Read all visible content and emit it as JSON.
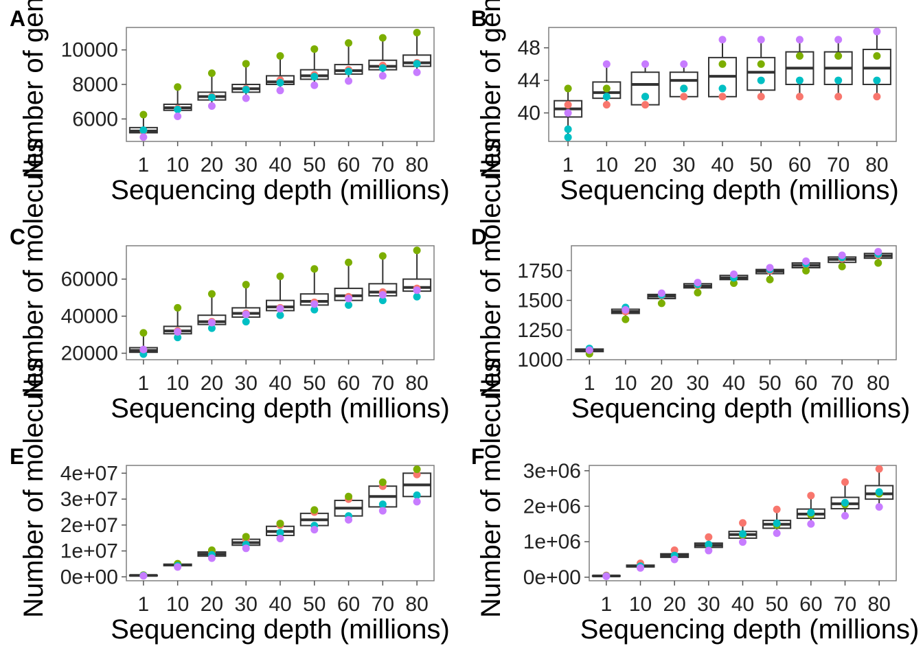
{
  "chart_data": [
    {
      "label": "A",
      "type": "box",
      "xlabel": "Sequencing depth (millions)",
      "ylabel": "Number of genes detected",
      "categories": [
        "1",
        "10",
        "20",
        "30",
        "40",
        "50",
        "60",
        "70",
        "80"
      ],
      "ylim": [
        4700,
        11300
      ],
      "yticks": [
        6000,
        8000,
        10000
      ],
      "ytick_labels": [
        "6000",
        "8000",
        "10000"
      ],
      "boxes": [
        {
          "min": 4950,
          "q1": 5200,
          "median": 5300,
          "q3": 5500,
          "max": 6250
        },
        {
          "min": 6150,
          "q1": 6500,
          "median": 6650,
          "q3": 6850,
          "max": 7850
        },
        {
          "min": 6750,
          "q1": 7100,
          "median": 7300,
          "q3": 7550,
          "max": 8650
        },
        {
          "min": 7200,
          "q1": 7550,
          "median": 7750,
          "q3": 8000,
          "max": 9200
        },
        {
          "min": 7650,
          "q1": 8000,
          "median": 8150,
          "q3": 8500,
          "max": 9650
        },
        {
          "min": 7950,
          "q1": 8300,
          "median": 8500,
          "q3": 8850,
          "max": 10050
        },
        {
          "min": 8200,
          "q1": 8600,
          "median": 8800,
          "q3": 9150,
          "max": 10400
        },
        {
          "min": 8500,
          "q1": 8850,
          "median": 9050,
          "q3": 9400,
          "max": 10700
        },
        {
          "min": 8700,
          "q1": 9050,
          "median": 9250,
          "q3": 9700,
          "max": 11000
        }
      ],
      "series": [
        {
          "color": "#F8766D",
          "values": [
            5300,
            6600,
            7300,
            7750,
            8250,
            8550,
            8850,
            9100,
            9250
          ]
        },
        {
          "color": "#7CAE00",
          "values": [
            6250,
            7850,
            8650,
            9200,
            9650,
            10050,
            10400,
            10700,
            11000
          ]
        },
        {
          "color": "#00BFC4",
          "values": [
            5350,
            6550,
            7250,
            7700,
            8100,
            8450,
            8750,
            8950,
            9200
          ]
        },
        {
          "color": "#C77CFF",
          "values": [
            4950,
            6150,
            6750,
            7200,
            7650,
            7950,
            8200,
            8500,
            8700
          ]
        }
      ]
    },
    {
      "label": "B",
      "type": "box",
      "xlabel": "Sequencing depth (millions)",
      "ylabel": "Number of genes detected",
      "categories": [
        "1",
        "10",
        "20",
        "30",
        "40",
        "50",
        "60",
        "70",
        "80"
      ],
      "ylim": [
        36.5,
        50.5
      ],
      "yticks": [
        40,
        44,
        48
      ],
      "ytick_labels": [
        "40",
        "44",
        "48"
      ],
      "boxes": [
        {
          "min": 37,
          "q1": 39.5,
          "median": 40.5,
          "q3": 41.5,
          "max": 43
        },
        {
          "min": 41,
          "q1": 41.8,
          "median": 42.5,
          "q3": 43.8,
          "max": 46
        },
        {
          "min": 41,
          "q1": 41,
          "median": 43.5,
          "q3": 45,
          "max": 46
        },
        {
          "min": 42,
          "q1": 42,
          "median": 44,
          "q3": 45,
          "max": 46
        },
        {
          "min": 42,
          "q1": 42,
          "median": 44.5,
          "q3": 46.8,
          "max": 49
        },
        {
          "min": 42,
          "q1": 42.8,
          "median": 45,
          "q3": 46.8,
          "max": 49
        },
        {
          "min": 42,
          "q1": 43.5,
          "median": 45.5,
          "q3": 47.5,
          "max": 49
        },
        {
          "min": 42,
          "q1": 43.5,
          "median": 45.5,
          "q3": 47.5,
          "max": 49
        },
        {
          "min": 42,
          "q1": 43.5,
          "median": 45.5,
          "q3": 47.8,
          "max": 50
        }
      ],
      "series": [
        {
          "color": "#F8766D",
          "values": [
            41,
            41,
            41,
            42,
            42,
            42,
            42,
            42,
            42
          ]
        },
        {
          "color": "#7CAE00",
          "values": [
            43,
            43,
            42,
            43,
            46,
            46,
            47,
            47,
            47
          ]
        },
        {
          "color": "#00BFC4",
          "values": [
            38,
            42,
            42,
            43,
            43,
            44,
            44,
            44,
            44
          ]
        },
        {
          "color": "#C77CFF",
          "values": [
            40,
            46,
            46,
            46,
            49,
            49,
            49,
            49,
            50
          ]
        }
      ],
      "extra_points": [
        {
          "x": "1",
          "y": 37,
          "color": "#00BFC4"
        }
      ]
    },
    {
      "label": "C",
      "type": "box",
      "xlabel": "Sequencing depth (millions)",
      "ylabel": "Number of molecules",
      "categories": [
        "1",
        "10",
        "20",
        "30",
        "40",
        "50",
        "60",
        "70",
        "80"
      ],
      "ylim": [
        16500,
        78000
      ],
      "yticks": [
        20000,
        40000,
        60000
      ],
      "ytick_labels": [
        "20000",
        "40000",
        "60000"
      ],
      "boxes": [
        {
          "min": 19500,
          "q1": 20500,
          "median": 21500,
          "q3": 23000,
          "max": 31000
        },
        {
          "min": 28500,
          "q1": 30500,
          "median": 32000,
          "q3": 34500,
          "max": 44500
        },
        {
          "min": 33500,
          "q1": 35500,
          "median": 37000,
          "q3": 40500,
          "max": 52000
        },
        {
          "min": 37000,
          "q1": 39500,
          "median": 41500,
          "q3": 44500,
          "max": 57000
        },
        {
          "min": 40500,
          "q1": 43000,
          "median": 45000,
          "q3": 48500,
          "max": 61500
        },
        {
          "min": 43500,
          "q1": 46000,
          "median": 48000,
          "q3": 52000,
          "max": 65500
        },
        {
          "min": 46000,
          "q1": 48500,
          "median": 51000,
          "q3": 55000,
          "max": 69000
        },
        {
          "min": 48500,
          "q1": 51000,
          "median": 53000,
          "q3": 57500,
          "max": 72500
        },
        {
          "min": 50500,
          "q1": 53500,
          "median": 55500,
          "q3": 60000,
          "max": 75500
        }
      ],
      "series": [
        {
          "color": "#F8766D",
          "values": [
            21500,
            32000,
            37000,
            41500,
            44500,
            47500,
            50500,
            53000,
            55000
          ]
        },
        {
          "color": "#7CAE00",
          "values": [
            31000,
            44500,
            52000,
            57000,
            61500,
            65500,
            69000,
            72500,
            75500
          ]
        },
        {
          "color": "#00BFC4",
          "values": [
            19500,
            28500,
            33500,
            37000,
            40500,
            43500,
            46000,
            48500,
            50500
          ]
        },
        {
          "color": "#C77CFF",
          "values": [
            22000,
            31500,
            36500,
            41000,
            44000,
            46500,
            49500,
            51500,
            54000
          ]
        }
      ]
    },
    {
      "label": "D",
      "type": "box",
      "xlabel": "Sequencing depth (millions)",
      "ylabel": "Number of molecules",
      "categories": [
        "1",
        "10",
        "20",
        "30",
        "40",
        "50",
        "60",
        "70",
        "80"
      ],
      "ylim": [
        1000,
        1960
      ],
      "yticks": [
        1000,
        1250,
        1500,
        1750
      ],
      "ytick_labels": [
        "1000",
        "1250",
        "1500",
        "1750"
      ],
      "boxes": [
        {
          "min": 1050,
          "q1": 1068,
          "median": 1078,
          "q3": 1090,
          "max": 1095
        },
        {
          "min": 1340,
          "q1": 1390,
          "median": 1405,
          "q3": 1425,
          "max": 1440
        },
        {
          "min": 1475,
          "q1": 1515,
          "median": 1535,
          "q3": 1550,
          "max": 1560
        },
        {
          "min": 1565,
          "q1": 1605,
          "median": 1620,
          "q3": 1640,
          "max": 1650
        },
        {
          "min": 1645,
          "q1": 1675,
          "median": 1690,
          "q3": 1710,
          "max": 1720
        },
        {
          "min": 1675,
          "q1": 1725,
          "median": 1745,
          "q3": 1760,
          "max": 1775
        },
        {
          "min": 1750,
          "q1": 1775,
          "median": 1795,
          "q3": 1815,
          "max": 1830
        },
        {
          "min": 1785,
          "q1": 1820,
          "median": 1845,
          "q3": 1865,
          "max": 1880
        },
        {
          "min": 1815,
          "q1": 1855,
          "median": 1875,
          "q3": 1895,
          "max": 1910
        }
      ],
      "series": [
        {
          "color": "#F8766D",
          "values": [
            1075,
            1405,
            1540,
            1625,
            1700,
            1750,
            1800,
            1850,
            1880
          ]
        },
        {
          "color": "#7CAE00",
          "values": [
            1050,
            1340,
            1475,
            1565,
            1645,
            1675,
            1750,
            1785,
            1815
          ]
        },
        {
          "color": "#00BFC4",
          "values": [
            1095,
            1440,
            1545,
            1635,
            1690,
            1760,
            1810,
            1860,
            1890
          ]
        },
        {
          "color": "#C77CFF",
          "values": [
            1080,
            1420,
            1560,
            1650,
            1720,
            1775,
            1830,
            1880,
            1910
          ]
        }
      ]
    },
    {
      "label": "E",
      "type": "box",
      "xlabel": "Sequencing depth (millions)",
      "ylabel": "Number of molecules",
      "categories": [
        "1",
        "10",
        "20",
        "30",
        "40",
        "50",
        "60",
        "70",
        "80"
      ],
      "ylim": [
        -1500000,
        43000000
      ],
      "yticks": [
        0,
        10000000,
        20000000,
        30000000,
        40000000
      ],
      "ytick_labels": [
        "0e+00",
        "1e+07",
        "2e+07",
        "3e+07",
        "4e+07"
      ],
      "boxes": [
        {
          "min": 400000,
          "q1": 500000,
          "median": 550000,
          "q3": 650000,
          "max": 700000
        },
        {
          "min": 3800000,
          "q1": 4300000,
          "median": 4600000,
          "q3": 4900000,
          "max": 5100000
        },
        {
          "min": 7200000,
          "q1": 8000000,
          "median": 8800000,
          "q3": 9600000,
          "max": 10300000
        },
        {
          "min": 11000000,
          "q1": 12200000,
          "median": 13200000,
          "q3": 14500000,
          "max": 15500000
        },
        {
          "min": 14800000,
          "q1": 16000000,
          "median": 17500000,
          "q3": 19500000,
          "max": 20600000
        },
        {
          "min": 18200000,
          "q1": 19800000,
          "median": 22000000,
          "q3": 24500000,
          "max": 25800000
        },
        {
          "min": 22000000,
          "q1": 23500000,
          "median": 26500000,
          "q3": 29500000,
          "max": 31000000
        },
        {
          "min": 25500000,
          "q1": 27000000,
          "median": 31000000,
          "q3": 35000000,
          "max": 36500000
        },
        {
          "min": 29000000,
          "q1": 31000000,
          "median": 35500000,
          "q3": 40000000,
          "max": 41500000
        }
      ],
      "series": [
        {
          "color": "#F8766D",
          "values": [
            550000,
            4700000,
            9800000,
            14500000,
            20000000,
            25000000,
            30000000,
            35000000,
            39500000
          ]
        },
        {
          "color": "#7CAE00",
          "values": [
            700000,
            5100000,
            10300000,
            15500000,
            20600000,
            25800000,
            31000000,
            36500000,
            41500000
          ]
        },
        {
          "color": "#00BFC4",
          "values": [
            500000,
            4300000,
            8500000,
            12500000,
            17000000,
            19800000,
            23500000,
            28000000,
            31500000
          ]
        },
        {
          "color": "#C77CFF",
          "values": [
            400000,
            3800000,
            7200000,
            11000000,
            14800000,
            18200000,
            22000000,
            25500000,
            29000000
          ]
        }
      ]
    },
    {
      "label": "F",
      "type": "box",
      "xlabel": "Sequencing depth (millions)",
      "ylabel": "Number of molecules",
      "categories": [
        "1",
        "10",
        "20",
        "30",
        "40",
        "50",
        "60",
        "70",
        "80"
      ],
      "ylim": [
        -100000,
        3150000
      ],
      "yticks": [
        0,
        1000000,
        2000000,
        3000000
      ],
      "ytick_labels": [
        "0e+00",
        "1e+06",
        "2e+06",
        "3e+06"
      ],
      "boxes": [
        {
          "min": 25000,
          "q1": 30000,
          "median": 35000,
          "q3": 45000,
          "max": 50000
        },
        {
          "min": 260000,
          "q1": 290000,
          "median": 310000,
          "q3": 340000,
          "max": 390000
        },
        {
          "min": 500000,
          "q1": 560000,
          "median": 610000,
          "q3": 660000,
          "max": 760000
        },
        {
          "min": 750000,
          "q1": 840000,
          "median": 900000,
          "q3": 960000,
          "max": 1130000
        },
        {
          "min": 990000,
          "q1": 1100000,
          "median": 1200000,
          "q3": 1290000,
          "max": 1530000
        },
        {
          "min": 1240000,
          "q1": 1380000,
          "median": 1490000,
          "q3": 1600000,
          "max": 1910000
        },
        {
          "min": 1500000,
          "q1": 1660000,
          "median": 1780000,
          "q3": 1920000,
          "max": 2300000
        },
        {
          "min": 1730000,
          "q1": 1930000,
          "median": 2070000,
          "q3": 2250000,
          "max": 2680000
        },
        {
          "min": 1980000,
          "q1": 2200000,
          "median": 2350000,
          "q3": 2580000,
          "max": 3050000
        }
      ],
      "series": [
        {
          "color": "#F8766D",
          "values": [
            50000,
            390000,
            760000,
            1130000,
            1530000,
            1910000,
            2300000,
            2680000,
            3050000
          ]
        },
        {
          "color": "#7CAE00",
          "values": [
            35000,
            300000,
            600000,
            900000,
            1180000,
            1470000,
            1760000,
            2050000,
            2350000
          ]
        },
        {
          "color": "#00BFC4",
          "values": [
            30000,
            310000,
            610000,
            920000,
            1220000,
            1520000,
            1820000,
            2100000,
            2400000
          ]
        },
        {
          "color": "#C77CFF",
          "values": [
            25000,
            260000,
            500000,
            750000,
            990000,
            1240000,
            1500000,
            1730000,
            1980000
          ]
        }
      ]
    }
  ]
}
